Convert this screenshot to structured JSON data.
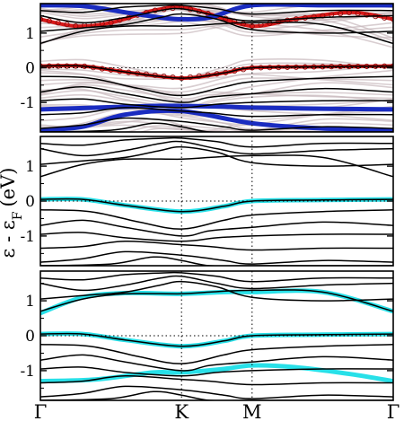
{
  "chart_data": {
    "type": "line",
    "shared_axes": {
      "ylabel_main": "ε - ε",
      "ylabel_sub": "F",
      "ylabel_unit": "(eV)",
      "xticks": [
        "Γ",
        "K",
        "M",
        "Γ"
      ],
      "xtick_positions": [
        0,
        1.0,
        1.5,
        2.5
      ],
      "xlim": [
        0,
        2.5
      ],
      "ylim": [
        -1.85,
        1.85
      ],
      "yticks": [
        -1,
        0,
        1
      ],
      "fermi_level_dotted": true,
      "kpoint_lines_dotted": true
    },
    "panels": [
      {
        "name": "top",
        "colors": {
          "bands": "#000000",
          "ghost": "#c8b8bc",
          "red": "#d81818",
          "blue": "#1a2cc0"
        },
        "highlight": [
          {
            "color": "red",
            "points": [
              [
                0,
                0.05
              ],
              [
                0.3,
                0.05
              ],
              [
                0.6,
                -0.12
              ],
              [
                1.0,
                -0.3
              ],
              [
                1.3,
                -0.15
              ],
              [
                1.5,
                0
              ],
              [
                2.0,
                0.03
              ],
              [
                2.5,
                0.05
              ]
            ]
          },
          {
            "color": "red",
            "points": [
              [
                0,
                1.4
              ],
              [
                0.25,
                1.2
              ],
              [
                0.5,
                1.3
              ],
              [
                0.8,
                1.65
              ],
              [
                1.0,
                1.75
              ],
              [
                1.2,
                1.55
              ],
              [
                1.5,
                1.2
              ],
              [
                1.8,
                1.4
              ],
              [
                2.2,
                1.6
              ],
              [
                2.5,
                1.4
              ]
            ]
          },
          {
            "color": "blue",
            "points": [
              [
                0,
                1.8
              ],
              [
                0.3,
                1.78
              ],
              [
                0.6,
                1.6
              ],
              [
                0.85,
                1.45
              ],
              [
                1.0,
                1.4
              ],
              [
                1.2,
                1.45
              ],
              [
                1.5,
                1.8
              ],
              [
                2.0,
                1.8
              ],
              [
                2.5,
                1.8
              ]
            ]
          },
          {
            "color": "blue",
            "points": [
              [
                0,
                -1.2
              ],
              [
                0.4,
                -1.15
              ],
              [
                0.8,
                -1.1
              ],
              [
                1.0,
                -1.1
              ],
              [
                1.3,
                -1.12
              ],
              [
                1.5,
                -1.15
              ],
              [
                2.0,
                -1.18
              ],
              [
                2.5,
                -1.2
              ]
            ]
          },
          {
            "color": "blue",
            "points": [
              [
                0,
                -1.8
              ],
              [
                0.3,
                -1.7
              ],
              [
                0.6,
                -1.35
              ],
              [
                1.0,
                -1.25
              ],
              [
                1.5,
                -1.6
              ],
              [
                2.0,
                -1.75
              ],
              [
                2.5,
                -1.8
              ]
            ]
          }
        ]
      },
      {
        "name": "middle",
        "colors": {
          "bands": "#000000",
          "cyan": "#28e0e8"
        },
        "highlight": [
          {
            "color": "cyan",
            "points": [
              [
                0,
                0.05
              ],
              [
                0.3,
                0.05
              ],
              [
                0.6,
                -0.12
              ],
              [
                1.0,
                -0.3
              ],
              [
                1.3,
                -0.15
              ],
              [
                1.5,
                0
              ],
              [
                2.0,
                0.03
              ],
              [
                2.5,
                0.05
              ]
            ]
          }
        ]
      },
      {
        "name": "bottom",
        "colors": {
          "bands": "#000000",
          "cyan": "#28e0e8"
        },
        "highlight": [
          {
            "color": "cyan",
            "points": [
              [
                0,
                0.65
              ],
              [
                0.3,
                1.1
              ],
              [
                0.6,
                1.22
              ],
              [
                1.0,
                1.2
              ],
              [
                1.3,
                1.25
              ],
              [
                1.5,
                1.25
              ],
              [
                2.0,
                1.25
              ],
              [
                2.5,
                0.7
              ]
            ]
          },
          {
            "color": "cyan",
            "points": [
              [
                0,
                0.05
              ],
              [
                0.3,
                0.05
              ],
              [
                0.6,
                -0.12
              ],
              [
                1.0,
                -0.3
              ],
              [
                1.3,
                -0.15
              ],
              [
                1.5,
                0
              ],
              [
                2.0,
                0.03
              ],
              [
                2.5,
                0.05
              ]
            ]
          },
          {
            "color": "cyan",
            "points": [
              [
                0,
                -1.3
              ],
              [
                0.4,
                -1.25
              ],
              [
                0.8,
                -1.05
              ],
              [
                1.0,
                -1.05
              ],
              [
                1.3,
                -0.95
              ],
              [
                1.5,
                -0.85
              ],
              [
                1.8,
                -0.9
              ],
              [
                2.2,
                -1.1
              ],
              [
                2.5,
                -1.3
              ]
            ]
          }
        ]
      }
    ],
    "bands": [
      [
        [
          0,
          1.65
        ],
        [
          0.3,
          1.6
        ],
        [
          0.6,
          1.75
        ],
        [
          0.9,
          1.8
        ],
        [
          1.0,
          1.8
        ],
        [
          1.25,
          1.7
        ],
        [
          1.5,
          1.55
        ],
        [
          2.0,
          1.65
        ],
        [
          2.5,
          1.65
        ]
      ],
      [
        [
          0,
          1.5
        ],
        [
          0.3,
          1.3
        ],
        [
          0.6,
          1.45
        ],
        [
          0.85,
          1.65
        ],
        [
          1.0,
          1.7
        ],
        [
          1.25,
          1.5
        ],
        [
          1.5,
          1.35
        ],
        [
          2.0,
          1.45
        ],
        [
          2.5,
          1.5
        ]
      ],
      [
        [
          0,
          1.05
        ],
        [
          0.3,
          1.15
        ],
        [
          0.6,
          1.25
        ],
        [
          0.85,
          1.45
        ],
        [
          1.0,
          1.55
        ],
        [
          1.25,
          1.4
        ],
        [
          1.5,
          1.1
        ],
        [
          2.0,
          1.0
        ],
        [
          2.5,
          1.05
        ]
      ],
      [
        [
          0,
          0.7
        ],
        [
          0.3,
          1.05
        ],
        [
          0.6,
          1.2
        ],
        [
          1.0,
          1.2
        ],
        [
          1.2,
          1.25
        ],
        [
          1.5,
          1.3
        ],
        [
          2.0,
          1.25
        ],
        [
          2.5,
          0.7
        ]
      ],
      [
        [
          0,
          0.05
        ],
        [
          0.3,
          0.05
        ],
        [
          0.6,
          -0.12
        ],
        [
          1.0,
          -0.3
        ],
        [
          1.3,
          -0.15
        ],
        [
          1.5,
          0.0
        ],
        [
          2.0,
          0.03
        ],
        [
          2.5,
          0.05
        ]
      ],
      [
        [
          0,
          -0.25
        ],
        [
          0.35,
          -0.3
        ],
        [
          0.7,
          -0.6
        ],
        [
          1.0,
          -0.8
        ],
        [
          1.3,
          -0.55
        ],
        [
          1.5,
          -0.4
        ],
        [
          2.0,
          -0.3
        ],
        [
          2.5,
          -0.25
        ]
      ],
      [
        [
          0,
          -0.7
        ],
        [
          0.3,
          -0.55
        ],
        [
          0.6,
          -0.75
        ],
        [
          1.0,
          -1.0
        ],
        [
          1.2,
          -0.85
        ],
        [
          1.5,
          -0.75
        ],
        [
          2.0,
          -0.6
        ],
        [
          2.5,
          -0.7
        ]
      ],
      [
        [
          0,
          -0.95
        ],
        [
          0.3,
          -0.9
        ],
        [
          0.6,
          -1.05
        ],
        [
          1.0,
          -1.15
        ],
        [
          1.25,
          -1.05
        ],
        [
          1.5,
          -1.0
        ],
        [
          2.0,
          -0.95
        ],
        [
          2.5,
          -0.95
        ]
      ],
      [
        [
          0,
          -1.35
        ],
        [
          0.3,
          -1.3
        ],
        [
          0.6,
          -1.15
        ],
        [
          1.0,
          -1.25
        ],
        [
          1.2,
          -1.3
        ],
        [
          1.5,
          -1.4
        ],
        [
          2.0,
          -1.35
        ],
        [
          2.5,
          -1.35
        ]
      ],
      [
        [
          0,
          -1.75
        ],
        [
          0.3,
          -1.65
        ],
        [
          0.6,
          -1.45
        ],
        [
          1.0,
          -1.55
        ],
        [
          1.3,
          -1.7
        ],
        [
          1.5,
          -1.8
        ],
        [
          2.0,
          -1.7
        ],
        [
          2.5,
          -1.75
        ]
      ],
      [
        [
          0,
          -1.85
        ],
        [
          0.5,
          -1.8
        ],
        [
          0.8,
          -1.6
        ],
        [
          1.0,
          -1.7
        ],
        [
          1.2,
          -1.85
        ],
        [
          1.5,
          -1.85
        ],
        [
          2.5,
          -1.85
        ]
      ]
    ]
  }
}
